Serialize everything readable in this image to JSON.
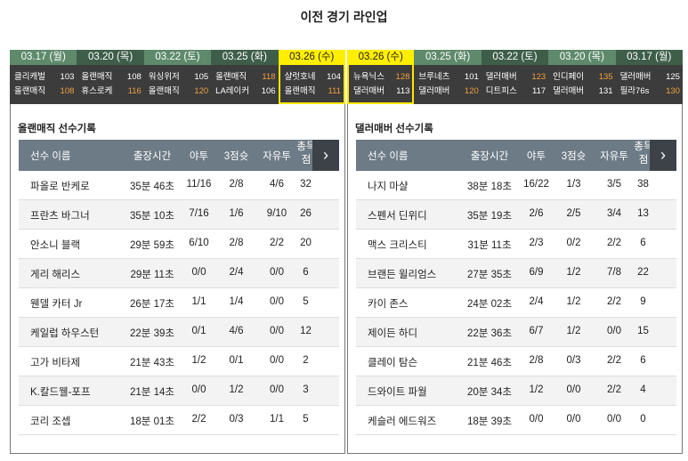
{
  "title": "이전 경기 라인업",
  "colors": {
    "header_a": "#5e8a6b",
    "header_b": "#3e5e4a",
    "selected": "#ffee00",
    "higher_score": "#f0a040",
    "table_header": "#6d7b86"
  },
  "left_games": [
    {
      "date": "03.17 (월)",
      "teams": [
        {
          "name": "클리캐벌",
          "score": "103",
          "hi": false
        },
        {
          "name": "올랜매직",
          "score": "108",
          "hi": true
        }
      ]
    },
    {
      "date": "03.20 (목)",
      "teams": [
        {
          "name": "올랜매직",
          "score": "108",
          "hi": false
        },
        {
          "name": "휴스로케",
          "score": "116",
          "hi": true
        }
      ]
    },
    {
      "date": "03.22 (토)",
      "teams": [
        {
          "name": "워싱위저",
          "score": "105",
          "hi": false
        },
        {
          "name": "올랜매직",
          "score": "120",
          "hi": true
        }
      ]
    },
    {
      "date": "03.25 (화)",
      "teams": [
        {
          "name": "올랜매직",
          "score": "118",
          "hi": true
        },
        {
          "name": "LA레이커",
          "score": "106",
          "hi": false
        }
      ]
    },
    {
      "date": "03.26 (수)",
      "selected": true,
      "teams": [
        {
          "name": "샬럿호네",
          "score": "104",
          "hi": false
        },
        {
          "name": "올랜매직",
          "score": "111",
          "hi": true
        }
      ]
    }
  ],
  "right_games": [
    {
      "date": "03.26 (수)",
      "selected": true,
      "teams": [
        {
          "name": "뉴욕닉스",
          "score": "128",
          "hi": true
        },
        {
          "name": "댈러매버",
          "score": "113",
          "hi": false
        }
      ]
    },
    {
      "date": "03.25 (화)",
      "teams": [
        {
          "name": "브루네츠",
          "score": "101",
          "hi": false
        },
        {
          "name": "댈러매버",
          "score": "120",
          "hi": true
        }
      ]
    },
    {
      "date": "03.22 (토)",
      "teams": [
        {
          "name": "댈러매버",
          "score": "123",
          "hi": true
        },
        {
          "name": "디트피스",
          "score": "117",
          "hi": false
        }
      ]
    },
    {
      "date": "03.20 (목)",
      "teams": [
        {
          "name": "인디페이",
          "score": "135",
          "hi": true
        },
        {
          "name": "댈러매버",
          "score": "131",
          "hi": false
        }
      ]
    },
    {
      "date": "03.17 (월)",
      "teams": [
        {
          "name": "댈러매버",
          "score": "125",
          "hi": false
        },
        {
          "name": "필라76s",
          "score": "130",
          "hi": true
        }
      ]
    }
  ],
  "columns": {
    "name": "선수 이름",
    "min": "출장시간",
    "fg": "야투",
    "tp": "3점슛",
    "ft": "자유투",
    "pts": "총득점",
    "next": "›"
  },
  "left_panel": {
    "title": "올랜매직 선수기록",
    "rows": [
      [
        "파올로 반케로",
        "35분 46초",
        "11/16",
        "2/8",
        "4/6",
        "32"
      ],
      [
        "프란츠 바그너",
        "35분 10초",
        "7/16",
        "1/6",
        "9/10",
        "26"
      ],
      [
        "안소니 블랙",
        "29분 59초",
        "6/10",
        "2/8",
        "2/2",
        "20"
      ],
      [
        "게리 해리스",
        "29분 11초",
        "0/0",
        "2/4",
        "0/0",
        "6"
      ],
      [
        "웬델 카터 Jr",
        "26분 17초",
        "1/1",
        "1/4",
        "0/0",
        "5"
      ],
      [
        "케일럽 하우스턴",
        "22분 39초",
        "0/1",
        "4/6",
        "0/0",
        "12"
      ],
      [
        "고가 비타제",
        "21분 43초",
        "1/2",
        "0/1",
        "0/0",
        "2"
      ],
      [
        "K.칼드웰-포프",
        "21분 14초",
        "0/0",
        "1/2",
        "0/0",
        "3"
      ],
      [
        "코리 조셉",
        "18분 01초",
        "2/2",
        "0/3",
        "1/1",
        "5"
      ]
    ]
  },
  "right_panel": {
    "title": "댈러매버 선수기록",
    "rows": [
      [
        "나지 마샬",
        "38분 18초",
        "16/22",
        "1/3",
        "3/5",
        "38"
      ],
      [
        "스펜서 딘위디",
        "35분 19초",
        "2/6",
        "2/5",
        "3/4",
        "13"
      ],
      [
        "맥스 크리스티",
        "31분 11초",
        "2/3",
        "0/2",
        "2/2",
        "6"
      ],
      [
        "브랜든 윌리엄스",
        "27분 35초",
        "6/9",
        "1/2",
        "7/8",
        "22"
      ],
      [
        "카이 존스",
        "24분 02초",
        "2/4",
        "1/2",
        "2/2",
        "9"
      ],
      [
        "제이든 하디",
        "22분 36초",
        "6/7",
        "1/2",
        "0/0",
        "15"
      ],
      [
        "클레이 탐슨",
        "21분 46초",
        "2/8",
        "0/3",
        "2/2",
        "6"
      ],
      [
        "드와이트 파월",
        "20분 34초",
        "1/2",
        "0/0",
        "2/2",
        "4"
      ],
      [
        "케슬러 에드워즈",
        "18분 39초",
        "0/0",
        "0/0",
        "0/0",
        "0"
      ]
    ]
  }
}
